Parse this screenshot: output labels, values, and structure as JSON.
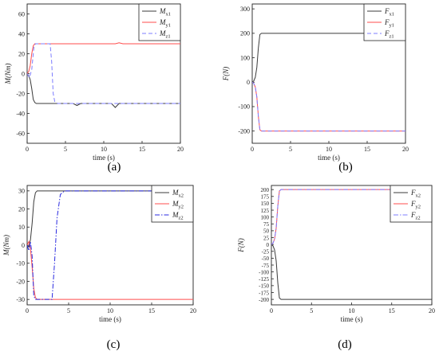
{
  "chart_data": [
    {
      "panel": "a",
      "type": "line",
      "caption": "(a)",
      "ylabel": "M(Nm)",
      "xlabel": "time (s)",
      "xlim": [
        0,
        20
      ],
      "ylim": [
        -70,
        70
      ],
      "xticks": [
        0,
        5,
        10,
        15,
        20
      ],
      "yticks": [
        -60,
        -40,
        -20,
        0,
        20,
        40,
        60
      ],
      "grid": false,
      "legend_position": "top-right",
      "series": [
        {
          "name": "M",
          "sub": "x1",
          "color": "#3b3b3b",
          "dash": "solid",
          "x": [
            0,
            0.2,
            0.4,
            0.6,
            0.8,
            1.0,
            1.2,
            1.5,
            3,
            6,
            6.5,
            7,
            11,
            11.5,
            12,
            15,
            20
          ],
          "y": [
            0,
            -2,
            -6,
            -15,
            -26,
            -29,
            -30,
            -30,
            -30,
            -30,
            -32,
            -30,
            -30,
            -34,
            -30,
            -30,
            -30
          ]
        },
        {
          "name": "M",
          "sub": "y1",
          "color": "#ff4d4d",
          "dash": "solid",
          "x": [
            0,
            0.2,
            0.4,
            0.6,
            0.8,
            1.0,
            1.5,
            5,
            11.5,
            12,
            12.5,
            20
          ],
          "y": [
            0,
            2,
            8,
            20,
            28,
            30,
            30,
            30,
            30,
            31,
            30,
            30
          ]
        },
        {
          "name": "M",
          "sub": "z1",
          "color": "#7c7cff",
          "dash": "dash",
          "x": [
            0,
            0.3,
            0.6,
            0.9,
            1.1,
            2.0,
            3.0,
            3.2,
            3.4,
            3.6,
            4.0,
            8,
            12,
            16,
            20
          ],
          "y": [
            0,
            -4,
            4,
            28,
            30,
            30,
            30,
            12,
            -20,
            -28,
            -30,
            -30,
            -30,
            -30,
            -30
          ]
        }
      ]
    },
    {
      "panel": "b",
      "type": "line",
      "caption": "(b)",
      "ylabel": "F(N)",
      "xlabel": "time (s)",
      "xlim": [
        0,
        20
      ],
      "ylim": [
        -250,
        320
      ],
      "xticks": [
        0,
        5,
        10,
        15,
        20
      ],
      "yticks": [
        -200,
        -100,
        0,
        100,
        200,
        300
      ],
      "grid": false,
      "legend_position": "top-right",
      "series": [
        {
          "name": "F",
          "sub": "x1",
          "color": "#3b3b3b",
          "dash": "solid",
          "x": [
            0,
            0.2,
            0.4,
            0.6,
            0.8,
            1.0,
            1.2,
            1.5,
            5,
            10,
            15,
            20
          ],
          "y": [
            0,
            5,
            20,
            60,
            140,
            195,
            200,
            200,
            200,
            200,
            200,
            200
          ]
        },
        {
          "name": "F",
          "sub": "y1",
          "color": "#ff4d4d",
          "dash": "solid",
          "x": [
            0,
            0.2,
            0.4,
            0.6,
            0.8,
            1.0,
            1.2,
            1.5,
            5,
            10,
            15,
            20
          ],
          "y": [
            0,
            -5,
            -20,
            -60,
            -140,
            -195,
            -200,
            -200,
            -200,
            -200,
            -200,
            -200
          ]
        },
        {
          "name": "F",
          "sub": "z1",
          "color": "#7c7cff",
          "dash": "dash",
          "x": [
            0,
            0.2,
            0.4,
            0.6,
            0.8,
            1.0,
            1.2,
            1.5,
            5,
            10,
            15,
            20
          ],
          "y": [
            0,
            -5,
            -20,
            -60,
            -140,
            -195,
            -200,
            -200,
            -200,
            -200,
            -200,
            -200
          ]
        }
      ]
    },
    {
      "panel": "c",
      "type": "line",
      "caption": "(c)",
      "ylabel": "M(Nm)",
      "xlabel": "time (s)",
      "xlim": [
        0,
        20
      ],
      "ylim": [
        -33,
        33
      ],
      "xticks": [
        0,
        5,
        10,
        15,
        20
      ],
      "yticks": [
        -30,
        -20,
        -10,
        0,
        10,
        20,
        30
      ],
      "grid": false,
      "legend_position": "top-right",
      "series": [
        {
          "name": "M",
          "sub": "x2",
          "color": "#3b3b3b",
          "dash": "solid",
          "x": [
            0,
            0.2,
            0.4,
            0.6,
            0.8,
            1.0,
            1.2,
            2,
            10,
            20
          ],
          "y": [
            0,
            -1,
            3,
            12,
            24,
            29,
            30,
            30,
            30,
            30
          ]
        },
        {
          "name": "M",
          "sub": "y2",
          "color": "#ff4d4d",
          "dash": "solid",
          "x": [
            0,
            0.2,
            0.4,
            0.6,
            0.8,
            1.0,
            1.2,
            2,
            10,
            20
          ],
          "y": [
            0,
            2,
            -2,
            -12,
            -24,
            -29,
            -30,
            -30,
            -30,
            -30
          ]
        },
        {
          "name": "M",
          "sub": "z2",
          "color": "#2a2ae0",
          "dash": "dashdot",
          "x": [
            0,
            0.2,
            0.4,
            0.6,
            0.8,
            1.0,
            1.4,
            3.0,
            3.3,
            3.6,
            4.0,
            4.5,
            10,
            20
          ],
          "y": [
            0,
            -3,
            2,
            -6,
            -28,
            -30,
            -30,
            -30,
            -10,
            15,
            28,
            30,
            30,
            30
          ]
        }
      ]
    },
    {
      "panel": "d",
      "type": "line",
      "caption": "(d)",
      "ylabel": "F(N)",
      "xlabel": "time (s)",
      "xlim": [
        0,
        20
      ],
      "ylim": [
        -220,
        215
      ],
      "xticks": [
        0,
        5,
        10,
        15,
        20
      ],
      "yticks": [
        -200,
        -175,
        -150,
        -125,
        -100,
        -75,
        -50,
        -25,
        0,
        25,
        50,
        75,
        100,
        125,
        150,
        175,
        200
      ],
      "grid": false,
      "legend_position": "top-right",
      "series": [
        {
          "name": "F",
          "sub": "x2",
          "color": "#3b3b3b",
          "dash": "solid",
          "x": [
            0,
            0.2,
            0.4,
            0.6,
            0.8,
            1.0,
            1.2,
            1.5,
            5,
            10,
            15,
            20
          ],
          "y": [
            0,
            -5,
            -20,
            -60,
            -140,
            -195,
            -200,
            -200,
            -200,
            -200,
            -200,
            -200
          ]
        },
        {
          "name": "F",
          "sub": "y2",
          "color": "#ff4d4d",
          "dash": "solid",
          "x": [
            0,
            0.2,
            0.4,
            0.6,
            0.8,
            1.0,
            1.2,
            1.5,
            5,
            10,
            15,
            20
          ],
          "y": [
            0,
            5,
            20,
            60,
            140,
            195,
            200,
            200,
            200,
            200,
            200,
            200
          ]
        },
        {
          "name": "F",
          "sub": "z2",
          "color": "#7c7cff",
          "dash": "dashdot",
          "x": [
            0,
            0.2,
            0.4,
            0.6,
            0.8,
            1.0,
            1.2,
            1.5,
            5,
            10,
            15,
            20
          ],
          "y": [
            0,
            5,
            20,
            60,
            140,
            195,
            200,
            200,
            200,
            200,
            200,
            200
          ]
        }
      ]
    }
  ]
}
